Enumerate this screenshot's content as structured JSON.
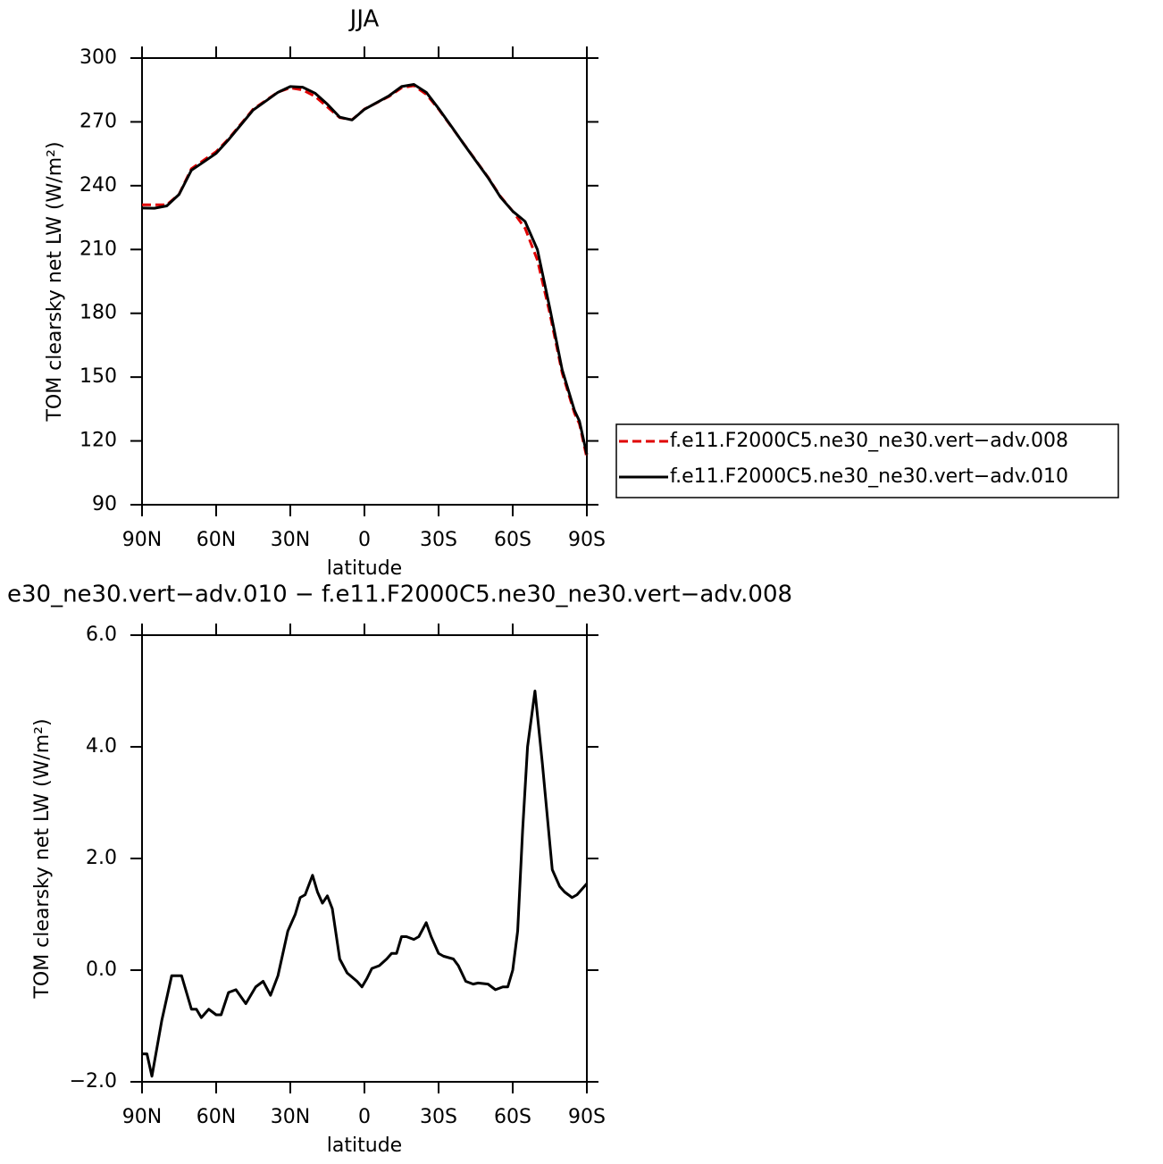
{
  "chart_data": [
    {
      "type": "line",
      "title": "JJA",
      "xlabel": "latitude",
      "ylabel": "TOM clearsky net LW (W/m²)",
      "x": [
        90,
        85,
        80,
        75,
        70,
        65,
        60,
        55,
        50,
        45,
        40,
        35,
        30,
        25,
        20,
        15,
        10,
        5,
        0,
        -5,
        -10,
        -15,
        -20,
        -25,
        -30,
        -35,
        -40,
        -45,
        -50,
        -55,
        -60,
        -65,
        -70,
        -75,
        -80,
        -85,
        -87,
        -90
      ],
      "series": [
        {
          "name": "f.e11.F2000C5.ne30_ne30.vert−adv.008",
          "color": "#e00000",
          "line_style": "dashed",
          "values": [
            231,
            231,
            231,
            236,
            248,
            252,
            256,
            262,
            269,
            276,
            280,
            284,
            286,
            285,
            282,
            277,
            272,
            271,
            276,
            279,
            282,
            286,
            287,
            283,
            276,
            268,
            260,
            252,
            244,
            235,
            228,
            220,
            205,
            180,
            152,
            133,
            128,
            112
          ]
        },
        {
          "name": "f.e11.F2000C5.ne30_ne30.vert−adv.010",
          "color": "#000000",
          "line_style": "solid",
          "values": [
            229.5,
            229.4,
            230.5,
            235.9,
            247.3,
            251.2,
            255.2,
            261.6,
            268.6,
            275.6,
            279.7,
            283.9,
            286.6,
            286.3,
            283.5,
            278.3,
            272.2,
            270.9,
            275.9,
            279.1,
            282.3,
            286.6,
            287.6,
            283.9,
            276.3,
            268.2,
            259.9,
            251.8,
            243.8,
            234.7,
            228,
            223.2,
            209.9,
            182.5,
            153.5,
            134.3,
            129.3,
            113.6
          ]
        }
      ],
      "xlim": [
        90,
        -90
      ],
      "xticks": [
        {
          "value": 90,
          "label": "90N"
        },
        {
          "value": 60,
          "label": "60N"
        },
        {
          "value": 30,
          "label": "30N"
        },
        0,
        {
          "value": -30,
          "label": "30S"
        },
        {
          "value": -60,
          "label": "60S"
        },
        {
          "value": -90,
          "label": "90S"
        }
      ],
      "ylim": [
        90,
        300
      ],
      "yticks": [
        90,
        120,
        150,
        180,
        210,
        240,
        270,
        300
      ],
      "legend": "right"
    },
    {
      "type": "line",
      "title": "e30_ne30.vert−adv.010 − f.e11.F2000C5.ne30_ne30.vert−adv.008",
      "xlabel": "latitude",
      "ylabel": "TOM clearsky net LW (W/m²)",
      "x": [
        90,
        88,
        86,
        82,
        78,
        76,
        74,
        72,
        70,
        68,
        66,
        63,
        60,
        58,
        55,
        52,
        48,
        44,
        41,
        38,
        35,
        31,
        28,
        26,
        24,
        21,
        19,
        17,
        15,
        13,
        10,
        7,
        3,
        1,
        -1,
        -3,
        -6,
        -9,
        -11,
        -13,
        -15,
        -17,
        -20,
        -22,
        -25,
        -27,
        -30,
        -32,
        -36,
        -38,
        -41,
        -44,
        -46,
        -50,
        -53,
        -56,
        -58,
        -60,
        -62,
        -64,
        -66,
        -69,
        -72,
        -76,
        -79,
        -81,
        -84,
        -86,
        -90
      ],
      "values": [
        -1.5,
        -1.5,
        -1.9,
        -0.9,
        -0.1,
        -0.1,
        -0.1,
        -0.4,
        -0.7,
        -0.7,
        -0.85,
        -0.7,
        -0.8,
        -0.8,
        -0.4,
        -0.35,
        -0.6,
        -0.3,
        -0.2,
        -0.45,
        -0.1,
        0.7,
        1.0,
        1.3,
        1.35,
        1.7,
        1.4,
        1.2,
        1.33,
        1.1,
        0.2,
        -0.05,
        -0.2,
        -0.3,
        -0.15,
        0.03,
        0.08,
        0.2,
        0.3,
        0.3,
        0.6,
        0.6,
        0.55,
        0.6,
        0.85,
        0.6,
        0.3,
        0.25,
        0.2,
        0.08,
        -0.2,
        -0.25,
        -0.23,
        -0.25,
        -0.35,
        -0.3,
        -0.3,
        0,
        0.7,
        2.5,
        4.0,
        5.0,
        3.7,
        1.8,
        1.5,
        1.4,
        1.3,
        1.35,
        1.55
      ],
      "color": "#000000",
      "xlim": [
        90,
        -90
      ],
      "xticks": [
        {
          "value": 90,
          "label": "90N"
        },
        {
          "value": 60,
          "label": "60N"
        },
        {
          "value": 30,
          "label": "30N"
        },
        0,
        {
          "value": -30,
          "label": "30S"
        },
        {
          "value": -60,
          "label": "60S"
        },
        {
          "value": -90,
          "label": "90S"
        }
      ],
      "ylim": [
        -2,
        6
      ],
      "yticks": [
        {
          "value": -2,
          "label": "−2.0"
        },
        {
          "value": 0,
          "label": "0.0"
        },
        {
          "value": 2,
          "label": "2.0"
        },
        {
          "value": 4,
          "label": "4.0"
        },
        {
          "value": 6,
          "label": "6.0"
        }
      ]
    }
  ]
}
